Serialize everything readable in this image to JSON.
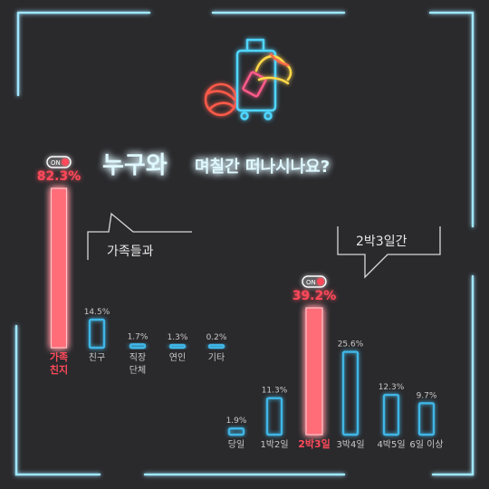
{
  "title": {
    "part1": "누구와",
    "part2": "며칠간 떠나시나요?"
  },
  "colors": {
    "background": "#2a2a2d",
    "frame": "#9fe6ff",
    "highlight": "#ff4a5a",
    "bar_outline": "#3fb6e6",
    "text": "#c8c8c8"
  },
  "toggle_label": "ON",
  "chart_data": [
    {
      "type": "bar",
      "title": "누구와",
      "categories": [
        "가족\n친지",
        "친구",
        "직장\n단체",
        "연인",
        "기타"
      ],
      "values": [
        82.3,
        14.5,
        1.7,
        1.3,
        0.2
      ],
      "labels": [
        "82.3%",
        "14.5%",
        "1.7%",
        "1.3%",
        "0.2%"
      ],
      "highlight_index": 0,
      "callout": "가족들과",
      "unit": "%"
    },
    {
      "type": "bar",
      "title": "며칠간",
      "categories": [
        "당일",
        "1박2일",
        "2박3일",
        "3박4일",
        "4박5일",
        "6일 이상"
      ],
      "values": [
        1.9,
        11.3,
        39.2,
        25.6,
        12.3,
        9.7
      ],
      "labels": [
        "1.9%",
        "11.3%",
        "39.2%",
        "25.6%",
        "12.3%",
        "9.7%"
      ],
      "highlight_index": 2,
      "callout": "2박3일간",
      "unit": "%"
    }
  ]
}
